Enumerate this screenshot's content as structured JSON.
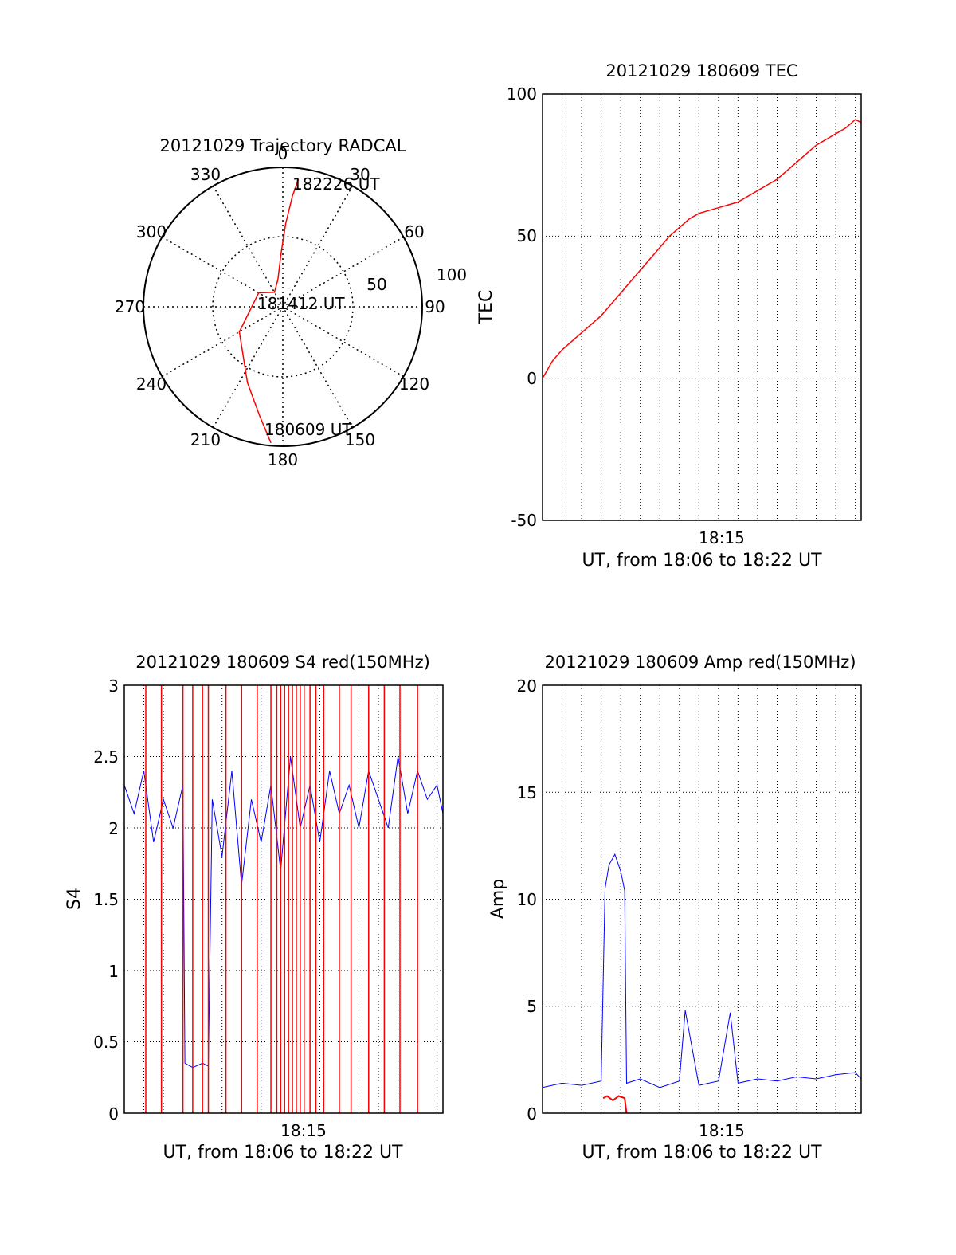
{
  "colors": {
    "series_red": "#ff0000",
    "series_blue": "#0000ff",
    "axis": "#000000",
    "grid": "#000000"
  },
  "chart_data": [
    {
      "type": "polar",
      "title": "20121029 Trajectory RADCAL",
      "angle_labels": [
        "0",
        "30",
        "60",
        "90",
        "120",
        "150",
        "180",
        "210",
        "240",
        "270",
        "300",
        "330"
      ],
      "radial_labels": [
        "50",
        "100"
      ],
      "rlim": [
        0,
        100
      ],
      "grid": true,
      "series": [
        {
          "color": "#ff0000",
          "points": [
            {
              "az": 185,
              "el": 2
            },
            {
              "az": 192,
              "el": 20
            },
            {
              "az": 205,
              "el": 40
            },
            {
              "az": 240,
              "el": 64
            },
            {
              "az": 300,
              "el": 80
            },
            {
              "az": 330,
              "el": 88
            },
            {
              "az": 350,
              "el": 80
            },
            {
              "az": 358,
              "el": 62
            },
            {
              "az": 2,
              "el": 40
            },
            {
              "az": 5,
              "el": 20
            },
            {
              "az": 7,
              "el": 8
            }
          ]
        }
      ],
      "annotations": [
        "182226 UT",
        "181412 UT",
        "180609 UT"
      ]
    },
    {
      "type": "line",
      "title": "20121029 180609 TEC",
      "xlabel": "UT, from 18:06 to 18:22 UT",
      "ylabel": "TEC",
      "x_tick_labels": [
        "18:15"
      ],
      "y_tick_labels": [
        "-50",
        "0",
        "50",
        "100"
      ],
      "ylim": [
        -50,
        100
      ],
      "xlim": [
        0,
        16.3
      ],
      "grid": true,
      "series": [
        {
          "color": "#ff0000",
          "x": [
            0,
            0.5,
            1,
            1.5,
            2,
            2.5,
            3,
            3.5,
            4,
            4.5,
            5,
            5.5,
            6,
            6.5,
            7,
            7.5,
            8,
            8.5,
            9,
            9.5,
            10,
            10.5,
            11,
            11.5,
            12,
            12.5,
            13,
            13.5,
            14,
            14.5,
            15,
            15.5,
            16,
            16.3
          ],
          "y": [
            0,
            6,
            10,
            13,
            16,
            19,
            22,
            26,
            30,
            34,
            38,
            42,
            46,
            50,
            53,
            56,
            58,
            59,
            60,
            61,
            62,
            64,
            66,
            68,
            70,
            73,
            76,
            79,
            82,
            84,
            86,
            88,
            91,
            90
          ]
        }
      ]
    },
    {
      "type": "line",
      "title": "20121029 180609 S4 red(150MHz)",
      "xlabel": "UT, from 18:06 to 18:22 UT",
      "ylabel": "S4",
      "x_tick_labels": [
        "18:15"
      ],
      "y_tick_labels": [
        "0",
        "0.5",
        "1",
        "1.5",
        "2",
        "2.5",
        "3"
      ],
      "ylim": [
        0,
        3
      ],
      "xlim": [
        0,
        16.3
      ],
      "grid": true,
      "series": [
        {
          "color": "#0000ff",
          "x": [
            0,
            0.5,
            1,
            1.5,
            2,
            2.5,
            3,
            3.1,
            3.5,
            4,
            4.3,
            4.5,
            5,
            5.5,
            6,
            6.5,
            7,
            7.5,
            8,
            8.5,
            9,
            9.5,
            10,
            10.5,
            11,
            11.5,
            12,
            12.5,
            13,
            13.5,
            14,
            14.5,
            15,
            15.5,
            16,
            16.3
          ],
          "y": [
            2.3,
            2.1,
            2.4,
            1.9,
            2.2,
            2.0,
            2.3,
            0.35,
            0.32,
            0.35,
            0.33,
            2.2,
            1.8,
            2.4,
            1.6,
            2.2,
            1.9,
            2.3,
            1.7,
            2.5,
            2.0,
            2.3,
            1.9,
            2.4,
            2.1,
            2.3,
            2.0,
            2.4,
            2.2,
            2.0,
            2.5,
            2.1,
            2.4,
            2.2,
            2.3,
            2.1
          ]
        },
        {
          "color": "#ff0000",
          "x": [
            1.1,
            1.9,
            3.0,
            3.5,
            4.0,
            4.3,
            5.2,
            6.0,
            6.8,
            7.5,
            7.8,
            8.0,
            8.2,
            8.4,
            8.6,
            8.8,
            9.0,
            9.2,
            9.5,
            9.8,
            10.2,
            11.0,
            11.6,
            12.5,
            13.3,
            14.1,
            15.0
          ],
          "y": [
            0,
            0,
            0,
            0,
            0,
            0,
            0,
            0,
            0,
            0,
            0,
            0,
            0,
            0,
            0,
            0,
            0,
            0,
            0,
            0,
            0,
            0,
            0,
            0,
            0,
            0,
            0
          ]
        }
      ]
    },
    {
      "type": "line",
      "title": "20121029 180609 Amp red(150MHz)",
      "xlabel": "UT, from 18:06 to 18:22 UT",
      "ylabel": "Amp",
      "x_tick_labels": [
        "18:15"
      ],
      "y_tick_labels": [
        "0",
        "5",
        "10",
        "15",
        "20"
      ],
      "ylim": [
        0,
        20
      ],
      "xlim": [
        0,
        16.3
      ],
      "grid": true,
      "series": [
        {
          "color": "#0000ff",
          "x": [
            0,
            1,
            2,
            3,
            3.2,
            3.4,
            3.7,
            4.0,
            4.2,
            4.3,
            5,
            6,
            7,
            7.3,
            8,
            9,
            9.6,
            10,
            11,
            12,
            13,
            14,
            15,
            16,
            16.3
          ],
          "y": [
            1.2,
            1.4,
            1.3,
            1.5,
            10.5,
            11.6,
            12.1,
            11.3,
            10.4,
            1.4,
            1.6,
            1.2,
            1.5,
            4.8,
            1.3,
            1.5,
            4.7,
            1.4,
            1.6,
            1.5,
            1.7,
            1.6,
            1.8,
            1.9,
            1.6
          ]
        },
        {
          "color": "#ff0000",
          "x": [
            3.1,
            3.3,
            3.6,
            3.9,
            4.2,
            4.3
          ],
          "y": [
            0.7,
            0.8,
            0.6,
            0.8,
            0.7,
            0.0
          ]
        }
      ]
    }
  ]
}
